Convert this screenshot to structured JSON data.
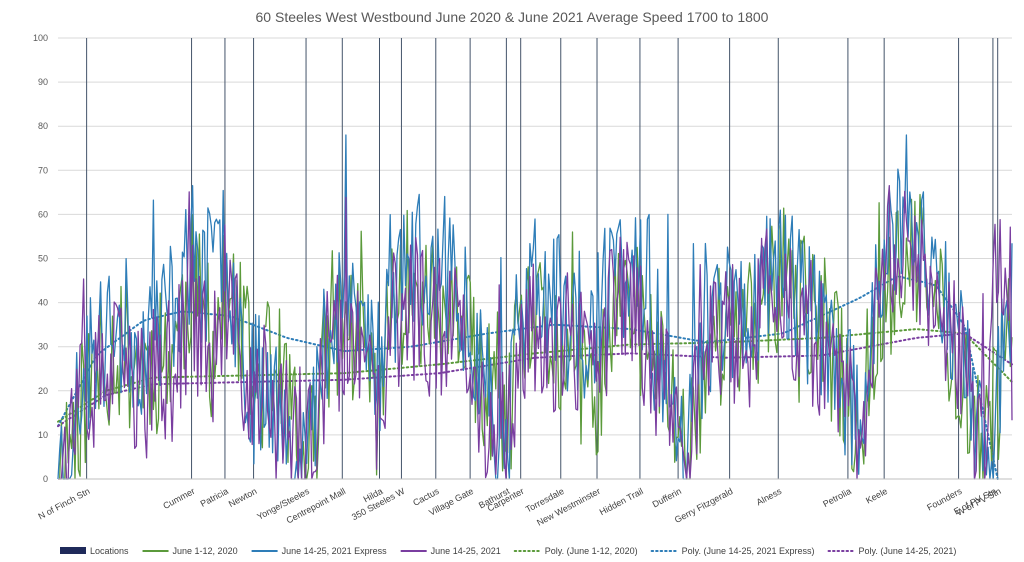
{
  "chart_data": {
    "type": "line",
    "title": "60 Steeles West Westbound June 2020 & June 2021 Average Speed 1700 to 1800",
    "ylim": [
      0,
      100
    ],
    "yticks": [
      0,
      10,
      20,
      30,
      40,
      50,
      60,
      70,
      80,
      90,
      100
    ],
    "grid": true,
    "legend_position": "bottom",
    "locations": [
      "N of Finch Stn",
      "Cummer",
      "Patricia",
      "Newton",
      "Yonge/Steeles",
      "Centrepoint Mall",
      "Hilda",
      "350 Steeles W",
      "Cactus",
      "Village Gate",
      "Bathurst",
      "Carpenter",
      "Torresdale",
      "New Westminster",
      "Hidden Trail",
      "Dufferin",
      "Gerry Fitzgerald",
      "Alness",
      "Petrolia",
      "Keele",
      "Founders",
      "E of PV Stn",
      "W of PV Stn"
    ],
    "location_markers": [
      0.03,
      0.14,
      0.175,
      0.205,
      0.26,
      0.298,
      0.337,
      0.36,
      0.396,
      0.432,
      0.47,
      0.485,
      0.527,
      0.565,
      0.61,
      0.65,
      0.704,
      0.755,
      0.828,
      0.866,
      0.944,
      0.98,
      1.0
    ],
    "series": [
      {
        "name": "Locations",
        "color": "#1f2a5a",
        "style": "bar"
      },
      {
        "name": "June 1-12, 2020",
        "color": "#5b9a3b",
        "style": "line",
        "seed": 11,
        "anchors": [
          [
            0,
            4
          ],
          [
            0.01,
            8
          ],
          [
            0.03,
            20
          ],
          [
            0.06,
            30
          ],
          [
            0.09,
            25
          ],
          [
            0.12,
            30
          ],
          [
            0.14,
            45
          ],
          [
            0.16,
            30
          ],
          [
            0.175,
            40
          ],
          [
            0.19,
            35
          ],
          [
            0.205,
            20
          ],
          [
            0.22,
            25
          ],
          [
            0.24,
            20
          ],
          [
            0.255,
            3
          ],
          [
            0.27,
            10
          ],
          [
            0.285,
            35
          ],
          [
            0.3,
            35
          ],
          [
            0.32,
            30
          ],
          [
            0.337,
            15
          ],
          [
            0.35,
            40
          ],
          [
            0.37,
            45
          ],
          [
            0.39,
            40
          ],
          [
            0.41,
            35
          ],
          [
            0.43,
            30
          ],
          [
            0.45,
            20
          ],
          [
            0.47,
            8
          ],
          [
            0.48,
            25
          ],
          [
            0.5,
            35
          ],
          [
            0.52,
            30
          ],
          [
            0.54,
            25
          ],
          [
            0.56,
            15
          ],
          [
            0.58,
            35
          ],
          [
            0.6,
            40
          ],
          [
            0.62,
            30
          ],
          [
            0.64,
            20
          ],
          [
            0.66,
            5
          ],
          [
            0.68,
            30
          ],
          [
            0.7,
            35
          ],
          [
            0.72,
            30
          ],
          [
            0.74,
            40
          ],
          [
            0.76,
            45
          ],
          [
            0.78,
            40
          ],
          [
            0.8,
            35
          ],
          [
            0.82,
            25
          ],
          [
            0.84,
            10
          ],
          [
            0.86,
            40
          ],
          [
            0.88,
            45
          ],
          [
            0.9,
            50
          ],
          [
            0.92,
            40
          ],
          [
            0.94,
            30
          ],
          [
            0.96,
            15
          ],
          [
            0.97,
            5
          ],
          [
            0.985,
            20
          ],
          [
            1.0,
            35
          ]
        ]
      },
      {
        "name": "June 14-25, 2021 Express",
        "color": "#2e7db8",
        "style": "line",
        "seed": 23,
        "anchors": [
          [
            0,
            4
          ],
          [
            0.01,
            6
          ],
          [
            0.03,
            25
          ],
          [
            0.06,
            35
          ],
          [
            0.09,
            30
          ],
          [
            0.12,
            40
          ],
          [
            0.14,
            50
          ],
          [
            0.16,
            45
          ],
          [
            0.175,
            55
          ],
          [
            0.19,
            35
          ],
          [
            0.205,
            20
          ],
          [
            0.22,
            25
          ],
          [
            0.24,
            10
          ],
          [
            0.255,
            3
          ],
          [
            0.27,
            15
          ],
          [
            0.285,
            40
          ],
          [
            0.3,
            45
          ],
          [
            0.32,
            35
          ],
          [
            0.337,
            25
          ],
          [
            0.35,
            50
          ],
          [
            0.37,
            50
          ],
          [
            0.39,
            45
          ],
          [
            0.41,
            45
          ],
          [
            0.43,
            40
          ],
          [
            0.45,
            20
          ],
          [
            0.47,
            8
          ],
          [
            0.48,
            30
          ],
          [
            0.5,
            45
          ],
          [
            0.52,
            40
          ],
          [
            0.54,
            35
          ],
          [
            0.56,
            30
          ],
          [
            0.58,
            45
          ],
          [
            0.6,
            50
          ],
          [
            0.62,
            35
          ],
          [
            0.64,
            25
          ],
          [
            0.66,
            8
          ],
          [
            0.68,
            35
          ],
          [
            0.7,
            40
          ],
          [
            0.72,
            35
          ],
          [
            0.74,
            45
          ],
          [
            0.76,
            50
          ],
          [
            0.78,
            40
          ],
          [
            0.8,
            35
          ],
          [
            0.82,
            25
          ],
          [
            0.84,
            10
          ],
          [
            0.86,
            50
          ],
          [
            0.88,
            55
          ],
          [
            0.9,
            55
          ],
          [
            0.92,
            50
          ],
          [
            0.94,
            35
          ],
          [
            0.96,
            15
          ],
          [
            0.97,
            3
          ],
          [
            0.98,
            0
          ],
          [
            0.99,
            35
          ],
          [
            1.0,
            45
          ]
        ]
      },
      {
        "name": "June 14-25, 2021",
        "color": "#7a3ea0",
        "style": "line",
        "seed": 37,
        "anchors": [
          [
            0,
            4
          ],
          [
            0.01,
            5
          ],
          [
            0.03,
            18
          ],
          [
            0.06,
            25
          ],
          [
            0.09,
            20
          ],
          [
            0.12,
            25
          ],
          [
            0.14,
            40
          ],
          [
            0.16,
            25
          ],
          [
            0.175,
            35
          ],
          [
            0.19,
            30
          ],
          [
            0.205,
            15
          ],
          [
            0.22,
            20
          ],
          [
            0.24,
            10
          ],
          [
            0.255,
            3
          ],
          [
            0.27,
            8
          ],
          [
            0.285,
            30
          ],
          [
            0.3,
            30
          ],
          [
            0.32,
            25
          ],
          [
            0.337,
            10
          ],
          [
            0.35,
            35
          ],
          [
            0.37,
            40
          ],
          [
            0.39,
            35
          ],
          [
            0.41,
            35
          ],
          [
            0.43,
            30
          ],
          [
            0.45,
            15
          ],
          [
            0.47,
            6
          ],
          [
            0.48,
            25
          ],
          [
            0.5,
            35
          ],
          [
            0.52,
            30
          ],
          [
            0.54,
            30
          ],
          [
            0.56,
            20
          ],
          [
            0.58,
            40
          ],
          [
            0.6,
            40
          ],
          [
            0.62,
            30
          ],
          [
            0.64,
            20
          ],
          [
            0.66,
            8
          ],
          [
            0.68,
            30
          ],
          [
            0.7,
            35
          ],
          [
            0.72,
            30
          ],
          [
            0.74,
            40
          ],
          [
            0.76,
            40
          ],
          [
            0.78,
            35
          ],
          [
            0.8,
            30
          ],
          [
            0.82,
            20
          ],
          [
            0.84,
            8
          ],
          [
            0.86,
            45
          ],
          [
            0.88,
            55
          ],
          [
            0.9,
            50
          ],
          [
            0.92,
            45
          ],
          [
            0.94,
            30
          ],
          [
            0.96,
            15
          ],
          [
            0.97,
            3
          ],
          [
            0.985,
            50
          ],
          [
            1.0,
            30
          ]
        ]
      },
      {
        "name": "Poly. (June 1-12, 2020)",
        "color": "#5b9a3b",
        "style": "dotted",
        "trend": [
          [
            0,
            13
          ],
          [
            0.05,
            20
          ],
          [
            0.1,
            23
          ],
          [
            0.2,
            23.5
          ],
          [
            0.3,
            24
          ],
          [
            0.4,
            26
          ],
          [
            0.5,
            28.5
          ],
          [
            0.6,
            30.5
          ],
          [
            0.7,
            31
          ],
          [
            0.8,
            32
          ],
          [
            0.9,
            34
          ],
          [
            0.95,
            33
          ],
          [
            1.0,
            22
          ]
        ]
      },
      {
        "name": "Poly. (June 14-25, 2021 Express)",
        "color": "#2e7db8",
        "style": "dotted",
        "trend": [
          [
            0,
            12
          ],
          [
            0.04,
            28
          ],
          [
            0.09,
            36
          ],
          [
            0.13,
            38
          ],
          [
            0.18,
            37
          ],
          [
            0.24,
            32
          ],
          [
            0.3,
            29
          ],
          [
            0.37,
            30
          ],
          [
            0.45,
            33
          ],
          [
            0.52,
            35
          ],
          [
            0.6,
            34
          ],
          [
            0.68,
            31
          ],
          [
            0.76,
            33
          ],
          [
            0.84,
            41
          ],
          [
            0.88,
            46
          ],
          [
            0.92,
            44
          ],
          [
            0.95,
            35
          ],
          [
            0.97,
            15
          ],
          [
            0.985,
            0
          ]
        ]
      },
      {
        "name": "Poly. (June 14-25, 2021)",
        "color": "#7a3ea0",
        "style": "dotted",
        "trend": [
          [
            0,
            12
          ],
          [
            0.05,
            19
          ],
          [
            0.1,
            21.5
          ],
          [
            0.2,
            22
          ],
          [
            0.3,
            22.5
          ],
          [
            0.4,
            24
          ],
          [
            0.5,
            27.5
          ],
          [
            0.6,
            28.5
          ],
          [
            0.7,
            27.5
          ],
          [
            0.8,
            28
          ],
          [
            0.9,
            32
          ],
          [
            0.95,
            33
          ],
          [
            1.0,
            26
          ]
        ]
      }
    ]
  }
}
